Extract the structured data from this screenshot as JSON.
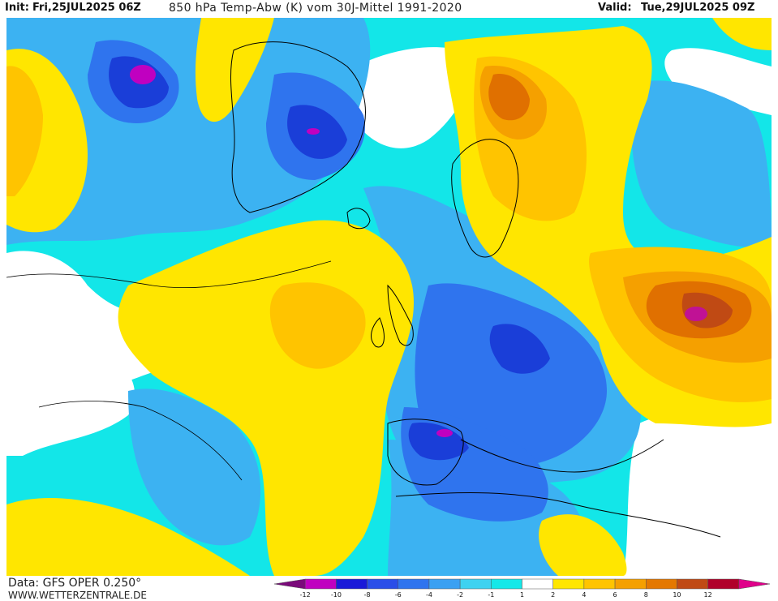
{
  "header": {
    "init_label": "Init:",
    "init_value": "Fri,25JUL2025 06Z",
    "title": "850 hPa Temp-Abw (K) vom 30J-Mittel 1991-2020",
    "valid_label": "Valid:",
    "valid_value": "Tue,29JUL2025 09Z"
  },
  "footer": {
    "data_source": "Data: GFS OPER 0.250°",
    "website": "WWW.WETTERZENTRALE.DE"
  },
  "legend": {
    "labels": [
      "-12",
      "-10",
      "-8",
      "-6",
      "-4",
      "-2",
      "-1",
      "1",
      "2",
      "4",
      "6",
      "8",
      "10",
      "12"
    ],
    "colors": [
      "#7a0a7a",
      "#c000c0",
      "#1a1ad8",
      "#2a4ee8",
      "#2f74ee",
      "#3aa0f2",
      "#3ed2f0",
      "#14e8e8",
      "#ffffff",
      "#ffe600",
      "#ffc400",
      "#f5a000",
      "#e47800",
      "#c04a14",
      "#b0002a",
      "#e0008a"
    ]
  },
  "map": {
    "colors": {
      "ocean_white": "#ffffff",
      "cyan_light": "#13e6e8",
      "sky_blue": "#3cb2f2",
      "blue": "#2f74ee",
      "deep_blue": "#1a3ed8",
      "magenta": "#c000c0",
      "yellow": "#ffe600",
      "gold": "#ffc400",
      "orange": "#f5a000",
      "dark_orange": "#e07000",
      "red_brown": "#c04a14"
    }
  }
}
